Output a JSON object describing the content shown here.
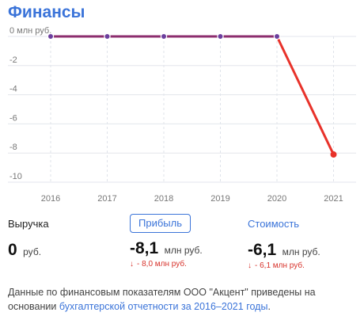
{
  "header": {
    "title": "Финансы"
  },
  "chart_data": {
    "type": "line",
    "x": [
      "2016",
      "2017",
      "2018",
      "2019",
      "2020",
      "2021"
    ],
    "series": [
      {
        "values": [
          0,
          0,
          0,
          0,
          0,
          -8.1
        ],
        "color": "#e8322a",
        "historic_color": "#8c2d6e",
        "point_color": "#6c3f9e"
      }
    ],
    "ylim": [
      -10,
      0
    ],
    "yticks": [
      0,
      -2,
      -4,
      -6,
      -8,
      -10
    ],
    "ytick_labels": [
      "0 млн руб.",
      "-2",
      "-4",
      "-6",
      "-8",
      "-10"
    ],
    "grid": true,
    "xlabel": "",
    "ylabel": ""
  },
  "metrics": {
    "revenue": {
      "label": "Выручка",
      "value": "0",
      "unit": "руб."
    },
    "profit": {
      "label": "Прибыль",
      "value": "-8,1",
      "unit": "млн руб.",
      "change": "- 8,0 млн руб.",
      "change_icon": "arrow-down-icon"
    },
    "value": {
      "label": "Стоимость",
      "value": "-6,1",
      "unit": "млн руб.",
      "change": "- 6,1 млн руб.",
      "change_icon": "arrow-down-icon"
    }
  },
  "note": {
    "text": "Данные по финансовым показателям ООО \"Акцент\" приведены на основании ",
    "link": "бухгалтерской отчетности за 2016–2021 годы",
    "tail": "."
  }
}
